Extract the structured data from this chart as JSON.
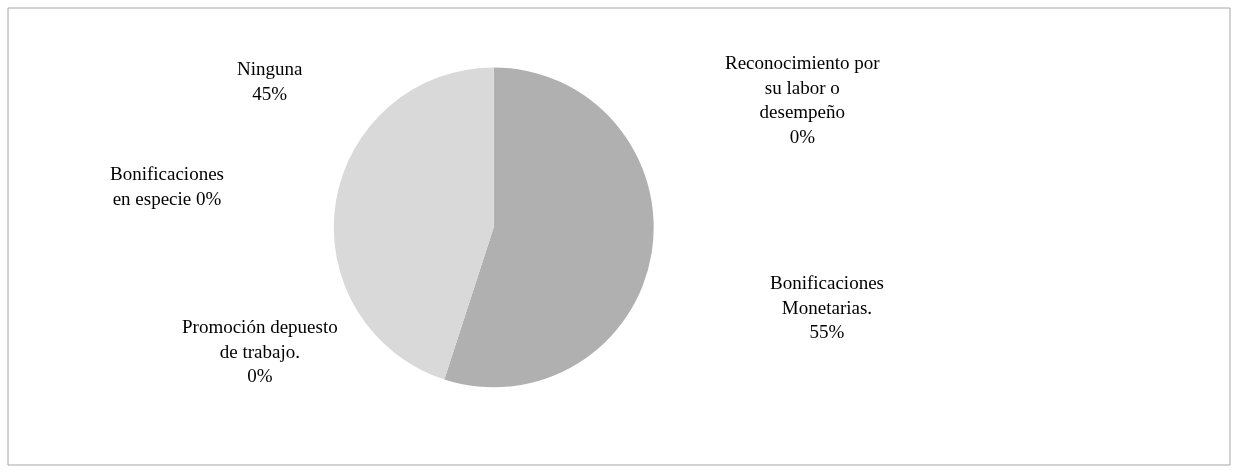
{
  "chart_data": {
    "type": "pie",
    "categories": [
      "Reconocimiento por su labor o desempeño",
      "Bonificaciones Monetarias.",
      "Promoción depuesto de trabajo.",
      "Bonificaciones en especie",
      "Ninguna"
    ],
    "values": [
      0,
      55,
      0,
      0,
      45
    ],
    "value_labels": [
      "0%",
      "55%",
      "0%",
      "0%",
      "45%"
    ],
    "colors": [
      "#8c8c8c",
      "#b0b0b0",
      "#9e9e9e",
      "#c4c4c4",
      "#d9d9d9"
    ],
    "legend": false
  }
}
